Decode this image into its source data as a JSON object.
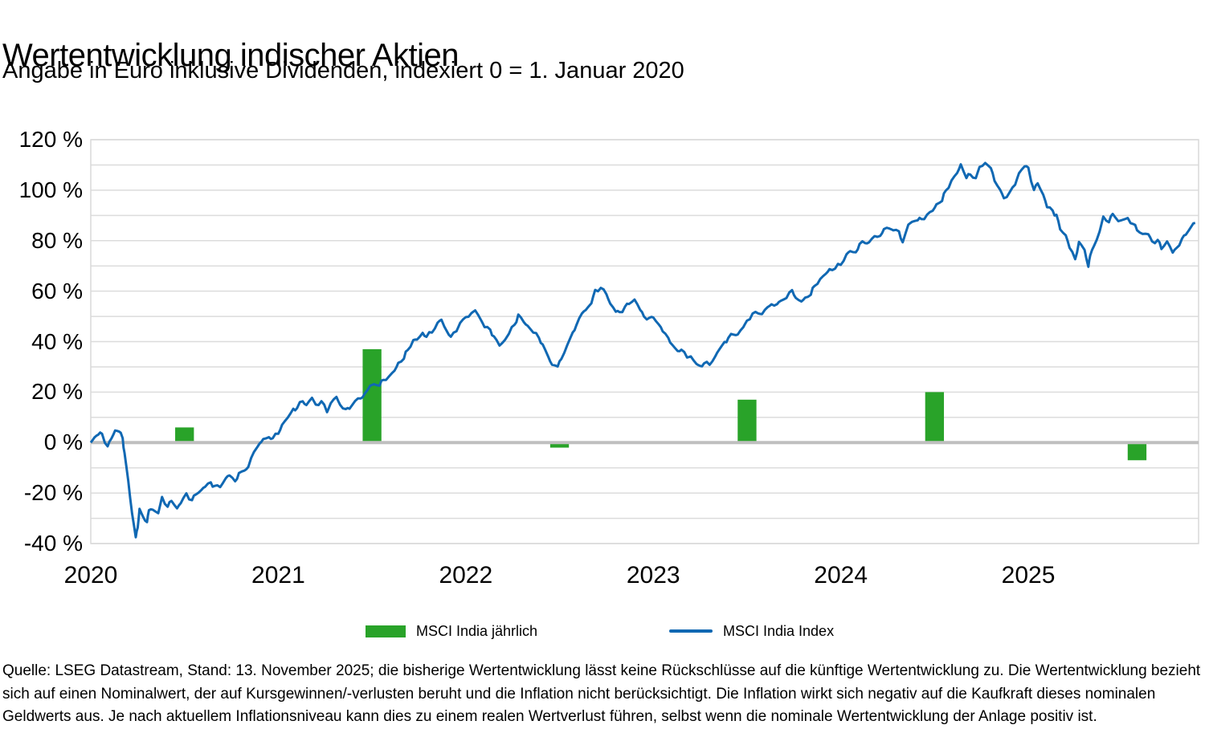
{
  "header": {
    "title": "Wertentwicklung indischer Aktien",
    "subtitle": "Angabe in Euro inklusive Dividenden, indexiert 0 = 1. Januar 2020"
  },
  "legend": {
    "bar_label": "MSCI India jährlich",
    "line_label": "MSCI India Index"
  },
  "footer": {
    "text": "Quelle: LSEG Datastream, Stand: 13. November 2025; die bisherige Wertentwicklung lässt keine Rückschlüsse auf die künftige Wertentwicklung zu. Die Wertentwicklung bezieht sich auf einen Nominalwert, der auf Kursgewinnen/-verlusten beruht und die Inflation nicht berücksichtigt. Die Inflation wirkt sich negativ auf die Kaufkraft dieses nominalen Geldwerts aus. Je nach aktuellem Inflationsniveau kann dies zu einem realen Wertverlust führen, selbst wenn die nominale Wertentwicklung der Anlage positiv ist."
  },
  "colors": {
    "bar_green": "#29a329",
    "line_blue": "#1068b3",
    "gridline": "#dcdcdc",
    "zero_line": "#bfbfbf",
    "plot_border": "#d9d9d9"
  },
  "chart_data": {
    "type": "line",
    "title": "Wertentwicklung indischer Aktien",
    "subtitle": "Angabe in Euro inklusive Dividenden, indexiert 0 = 1. Januar 2020",
    "grid": "horizontal-only",
    "legend_position": "bottom",
    "y_axis": {
      "unit": "%",
      "min": -40,
      "max": 120,
      "tick_values": [
        120,
        100,
        80,
        60,
        40,
        20,
        0,
        -20,
        -40
      ],
      "tick_labels": [
        "120 %",
        "100 %",
        "80 %",
        "60 %",
        "40 %",
        "20 %",
        "0 %",
        "-20 %",
        "-40 %"
      ],
      "gridline_step": 10
    },
    "x_axis": {
      "min": 2020.0,
      "max": 2025.908,
      "tick_values": [
        2020,
        2021,
        2022,
        2023,
        2024,
        2025
      ],
      "tick_labels": [
        "2020",
        "2021",
        "2022",
        "2023",
        "2024",
        "2025"
      ]
    },
    "series": [
      {
        "name": "MSCI India jährlich",
        "type": "bar",
        "color": "#29a329",
        "bar_width_years": 0.1,
        "x": [
          2020.5,
          2021.5,
          2022.5,
          2023.5,
          2024.5,
          2025.58
        ],
        "values": [
          6,
          37,
          -2,
          17,
          20,
          -7
        ]
      },
      {
        "name": "MSCI India Index",
        "type": "line",
        "color": "#1068b3",
        "points": [
          [
            2020.0,
            0
          ],
          [
            2020.02,
            2
          ],
          [
            2020.04,
            4
          ],
          [
            2020.06,
            3
          ],
          [
            2020.09,
            -2
          ],
          [
            2020.11,
            2
          ],
          [
            2020.13,
            4.5
          ],
          [
            2020.15,
            5
          ],
          [
            2020.17,
            2
          ],
          [
            2020.18,
            -5
          ],
          [
            2020.2,
            -15
          ],
          [
            2020.22,
            -28
          ],
          [
            2020.24,
            -37.5
          ],
          [
            2020.25,
            -33
          ],
          [
            2020.26,
            -27
          ],
          [
            2020.28,
            -30
          ],
          [
            2020.3,
            -31
          ],
          [
            2020.31,
            -27
          ],
          [
            2020.33,
            -26
          ],
          [
            2020.36,
            -28
          ],
          [
            2020.38,
            -22.5
          ],
          [
            2020.41,
            -25
          ],
          [
            2020.43,
            -23
          ],
          [
            2020.46,
            -26
          ],
          [
            2020.48,
            -23.5
          ],
          [
            2020.51,
            -21
          ],
          [
            2020.54,
            -23
          ],
          [
            2020.56,
            -20
          ],
          [
            2020.59,
            -19
          ],
          [
            2020.61,
            -17
          ],
          [
            2020.64,
            -16
          ],
          [
            2020.66,
            -18
          ],
          [
            2020.69,
            -17
          ],
          [
            2020.72,
            -14
          ],
          [
            2020.74,
            -13
          ],
          [
            2020.77,
            -15
          ],
          [
            2020.79,
            -13
          ],
          [
            2020.82,
            -11
          ],
          [
            2020.84,
            -9
          ],
          [
            2020.87,
            -4
          ],
          [
            2020.9,
            0
          ],
          [
            2020.92,
            1
          ],
          [
            2020.95,
            1.5
          ],
          [
            2020.97,
            2.5
          ],
          [
            2021.0,
            3.5
          ],
          [
            2021.02,
            7
          ],
          [
            2021.05,
            10
          ],
          [
            2021.08,
            12.5
          ],
          [
            2021.1,
            14
          ],
          [
            2021.13,
            17
          ],
          [
            2021.15,
            14.5
          ],
          [
            2021.18,
            18
          ],
          [
            2021.2,
            14.5
          ],
          [
            2021.23,
            16
          ],
          [
            2021.26,
            13
          ],
          [
            2021.28,
            15.5
          ],
          [
            2021.31,
            18
          ],
          [
            2021.33,
            15
          ],
          [
            2021.36,
            12.5
          ],
          [
            2021.38,
            14
          ],
          [
            2021.41,
            17
          ],
          [
            2021.44,
            17
          ],
          [
            2021.46,
            19.5
          ],
          [
            2021.49,
            22
          ],
          [
            2021.51,
            23
          ],
          [
            2021.54,
            23.5
          ],
          [
            2021.56,
            24.5
          ],
          [
            2021.59,
            26
          ],
          [
            2021.62,
            28.5
          ],
          [
            2021.64,
            31
          ],
          [
            2021.67,
            34
          ],
          [
            2021.69,
            37
          ],
          [
            2021.72,
            40
          ],
          [
            2021.74,
            41
          ],
          [
            2021.77,
            43
          ],
          [
            2021.79,
            42
          ],
          [
            2021.82,
            44.5
          ],
          [
            2021.85,
            47
          ],
          [
            2021.87,
            48.5
          ],
          [
            2021.9,
            44
          ],
          [
            2021.92,
            41.5
          ],
          [
            2021.95,
            45
          ],
          [
            2021.97,
            47.5
          ],
          [
            2022.0,
            49
          ],
          [
            2022.03,
            51.5
          ],
          [
            2022.05,
            52
          ],
          [
            2022.08,
            49
          ],
          [
            2022.1,
            46.5
          ],
          [
            2022.13,
            44
          ],
          [
            2022.15,
            42
          ],
          [
            2022.18,
            38.5
          ],
          [
            2022.21,
            40.5
          ],
          [
            2022.23,
            44
          ],
          [
            2022.26,
            46.5
          ],
          [
            2022.28,
            50
          ],
          [
            2022.31,
            48
          ],
          [
            2022.33,
            46
          ],
          [
            2022.36,
            44
          ],
          [
            2022.39,
            42
          ],
          [
            2022.41,
            38
          ],
          [
            2022.44,
            34
          ],
          [
            2022.46,
            31
          ],
          [
            2022.49,
            30
          ],
          [
            2022.51,
            34
          ],
          [
            2022.54,
            38
          ],
          [
            2022.57,
            43
          ],
          [
            2022.59,
            47
          ],
          [
            2022.62,
            51
          ],
          [
            2022.64,
            53
          ],
          [
            2022.67,
            55.5
          ],
          [
            2022.69,
            59.5
          ],
          [
            2022.72,
            61.5
          ],
          [
            2022.75,
            59
          ],
          [
            2022.77,
            55
          ],
          [
            2022.8,
            52.5
          ],
          [
            2022.82,
            51
          ],
          [
            2022.85,
            53.5
          ],
          [
            2022.87,
            55.5
          ],
          [
            2022.9,
            56.5
          ],
          [
            2022.93,
            53
          ],
          [
            2022.95,
            50
          ],
          [
            2022.98,
            48.5
          ],
          [
            2023.0,
            50
          ],
          [
            2023.03,
            47
          ],
          [
            2023.05,
            44
          ],
          [
            2023.08,
            42
          ],
          [
            2023.1,
            38
          ],
          [
            2023.13,
            36
          ],
          [
            2023.15,
            37.5
          ],
          [
            2023.18,
            33.5
          ],
          [
            2023.2,
            34.5
          ],
          [
            2023.23,
            31
          ],
          [
            2023.25,
            29.5
          ],
          [
            2023.27,
            32
          ],
          [
            2023.3,
            31
          ],
          [
            2023.33,
            34
          ],
          [
            2023.35,
            37
          ],
          [
            2023.38,
            39
          ],
          [
            2023.4,
            41.5
          ],
          [
            2023.43,
            43.5
          ],
          [
            2023.45,
            42.5
          ],
          [
            2023.48,
            46
          ],
          [
            2023.5,
            48
          ],
          [
            2023.53,
            50.5
          ],
          [
            2023.56,
            52
          ],
          [
            2023.58,
            51
          ],
          [
            2023.61,
            53.5
          ],
          [
            2023.63,
            55
          ],
          [
            2023.66,
            54
          ],
          [
            2023.68,
            56.5
          ],
          [
            2023.71,
            58
          ],
          [
            2023.74,
            60
          ],
          [
            2023.76,
            57.5
          ],
          [
            2023.79,
            55.5
          ],
          [
            2023.81,
            57
          ],
          [
            2023.84,
            59.5
          ],
          [
            2023.86,
            62
          ],
          [
            2023.89,
            64.5
          ],
          [
            2023.92,
            67
          ],
          [
            2023.94,
            68
          ],
          [
            2023.97,
            69.5
          ],
          [
            2024.0,
            71
          ],
          [
            2024.03,
            74
          ],
          [
            2024.05,
            76
          ],
          [
            2024.08,
            75
          ],
          [
            2024.1,
            78.5
          ],
          [
            2024.13,
            80
          ],
          [
            2024.15,
            79
          ],
          [
            2024.18,
            81.5
          ],
          [
            2024.21,
            82
          ],
          [
            2024.23,
            84
          ],
          [
            2024.26,
            85.5
          ],
          [
            2024.28,
            84.5
          ],
          [
            2024.31,
            83
          ],
          [
            2024.33,
            79.5
          ],
          [
            2024.36,
            86
          ],
          [
            2024.38,
            87.5
          ],
          [
            2024.41,
            89
          ],
          [
            2024.43,
            88
          ],
          [
            2024.46,
            90
          ],
          [
            2024.49,
            92
          ],
          [
            2024.51,
            94
          ],
          [
            2024.54,
            96.5
          ],
          [
            2024.56,
            100
          ],
          [
            2024.59,
            103
          ],
          [
            2024.62,
            107
          ],
          [
            2024.64,
            110
          ],
          [
            2024.67,
            105
          ],
          [
            2024.69,
            107
          ],
          [
            2024.72,
            104
          ],
          [
            2024.74,
            109
          ],
          [
            2024.77,
            111
          ],
          [
            2024.8,
            108.5
          ],
          [
            2024.82,
            104.5
          ],
          [
            2024.85,
            100
          ],
          [
            2024.87,
            96
          ],
          [
            2024.9,
            99.5
          ],
          [
            2024.93,
            102
          ],
          [
            2024.95,
            107
          ],
          [
            2024.98,
            110
          ],
          [
            2025.0,
            108
          ],
          [
            2025.03,
            100
          ],
          [
            2025.05,
            103
          ],
          [
            2025.08,
            98
          ],
          [
            2025.1,
            94
          ],
          [
            2025.13,
            91.5
          ],
          [
            2025.15,
            89.5
          ],
          [
            2025.17,
            85
          ],
          [
            2025.2,
            82
          ],
          [
            2025.22,
            77.5
          ],
          [
            2025.25,
            73
          ],
          [
            2025.27,
            78.5
          ],
          [
            2025.3,
            76.5
          ],
          [
            2025.32,
            70
          ],
          [
            2025.33,
            74
          ],
          [
            2025.35,
            78.5
          ],
          [
            2025.38,
            83
          ],
          [
            2025.4,
            89
          ],
          [
            2025.43,
            88
          ],
          [
            2025.45,
            90.5
          ],
          [
            2025.48,
            88
          ],
          [
            2025.51,
            88.5
          ],
          [
            2025.53,
            88
          ],
          [
            2025.56,
            87
          ],
          [
            2025.58,
            84.5
          ],
          [
            2025.61,
            82.5
          ],
          [
            2025.64,
            83
          ],
          [
            2025.66,
            79
          ],
          [
            2025.69,
            80
          ],
          [
            2025.71,
            77.5
          ],
          [
            2025.74,
            79.5
          ],
          [
            2025.77,
            75.5
          ],
          [
            2025.79,
            77
          ],
          [
            2025.82,
            80
          ],
          [
            2025.84,
            83
          ],
          [
            2025.87,
            86
          ],
          [
            2025.89,
            87
          ]
        ]
      }
    ]
  }
}
